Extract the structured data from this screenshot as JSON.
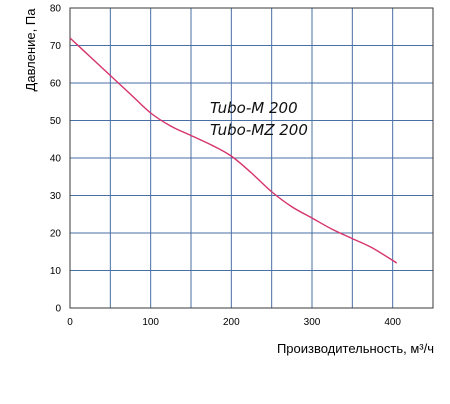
{
  "chart_data": {
    "type": "line",
    "title": "",
    "xlabel": "Производительность, м³/ч",
    "ylabel": "Давление, Па",
    "xlim": [
      0,
      450
    ],
    "ylim": [
      0,
      80
    ],
    "x_ticks": [
      0,
      100,
      200,
      300,
      400
    ],
    "x_grid": [
      0,
      50,
      100,
      150,
      200,
      250,
      300,
      350,
      400,
      450
    ],
    "y_ticks": [
      0,
      10,
      20,
      30,
      40,
      50,
      60,
      70,
      80
    ],
    "grid": true,
    "annotations": [
      "Tubo-M 200",
      "Tubo-MZ 200"
    ],
    "series": [
      {
        "color": "#d6336c",
        "x": [
          0,
          25,
          50,
          75,
          100,
          125,
          150,
          175,
          200,
          225,
          250,
          275,
          300,
          325,
          350,
          375,
          405
        ],
        "y": [
          72,
          67,
          62,
          57,
          52,
          48.5,
          46,
          43.5,
          40.5,
          36,
          31,
          27,
          24,
          21,
          18.5,
          16,
          12
        ]
      }
    ]
  }
}
